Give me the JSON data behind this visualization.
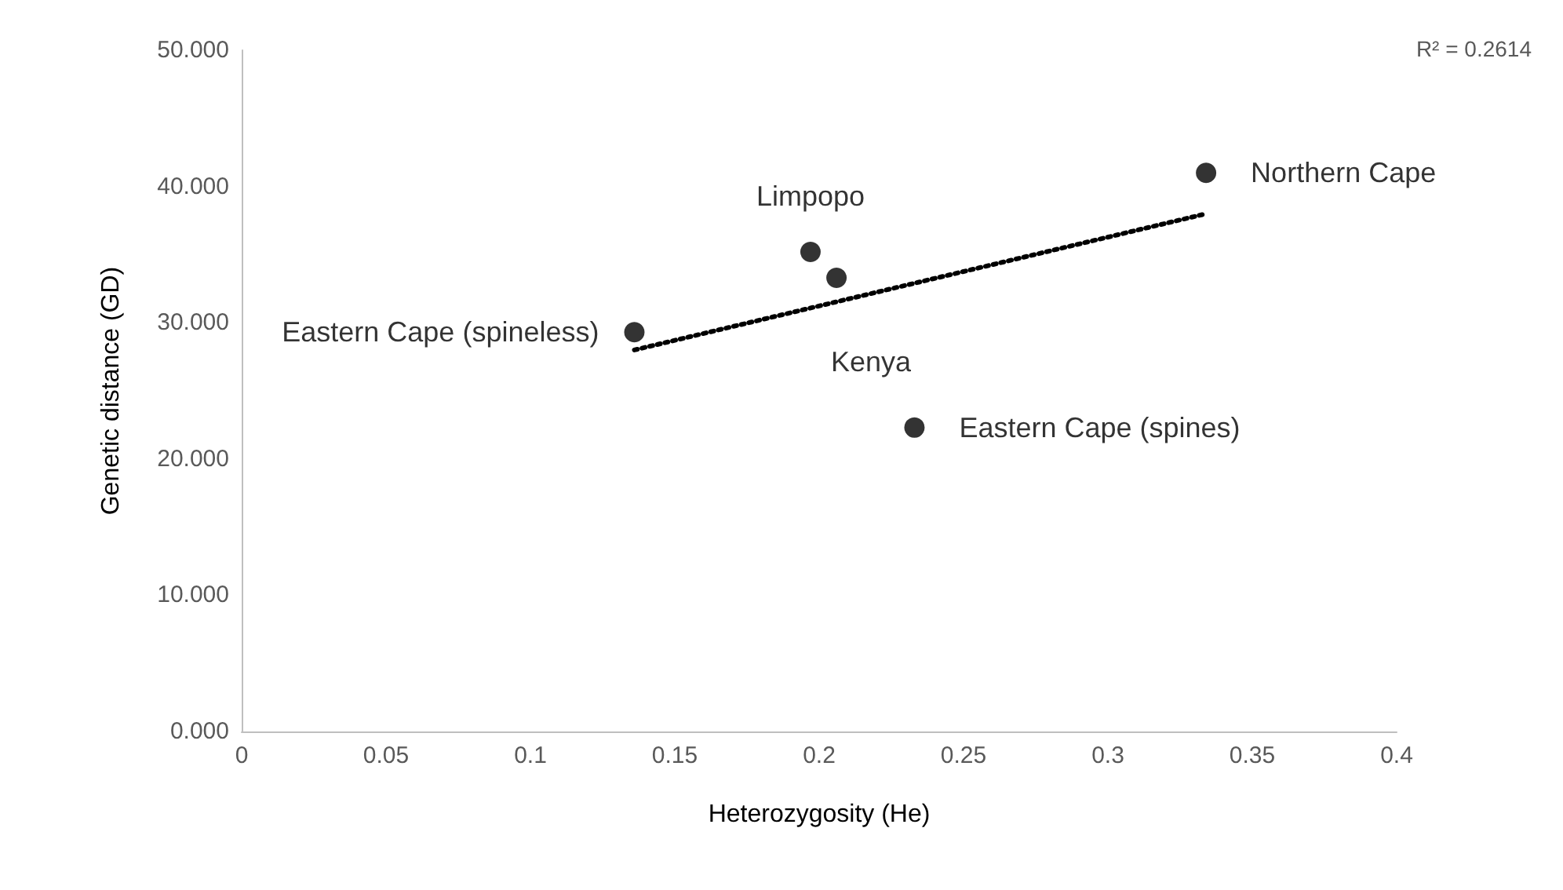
{
  "chart_data": {
    "type": "scatter",
    "xlabel": "Heterozygosity (He)",
    "ylabel": "Genetic distance (GD)",
    "x": [
      0.136,
      0.197,
      0.206,
      0.233,
      0.334
    ],
    "series": [
      {
        "color": "#000000",
        "values": [
          29.3,
          35.2,
          33.3,
          22.3,
          41.0
        ],
        "value_labels": [
          "Eastern Cape (spineless)",
          "Limpopo",
          "Kenya",
          "Eastern Cape (spines)",
          "Northern Cape"
        ],
        "marker": "circle"
      },
      {
        "type": "line",
        "color": "#000000",
        "x": [
          0.136,
          0.334
        ],
        "values": [
          28.0,
          38.0
        ],
        "line_style": "dotted",
        "marker": "none"
      }
    ],
    "xlim": [
      0,
      0.4
    ],
    "xticks": [
      0,
      0.05,
      0.1,
      0.15,
      0.2,
      0.25,
      0.3,
      0.35,
      0.4
    ],
    "ylim": [
      0,
      50
    ],
    "yticks": [
      {
        "value": 0,
        "label": "0.000"
      },
      {
        "value": 10,
        "label": "10.000"
      },
      {
        "value": 20,
        "label": "20.000"
      },
      {
        "value": 30,
        "label": "30.000"
      },
      {
        "value": 40,
        "label": "40.000"
      },
      {
        "value": 50,
        "label": "50.000"
      }
    ],
    "grid": false,
    "annotations": [
      "R² = 0.2614"
    ]
  }
}
